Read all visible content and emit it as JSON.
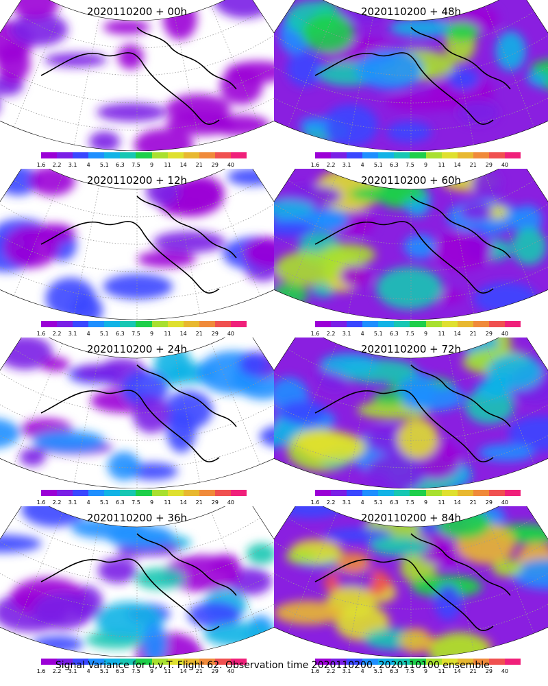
{
  "colorbar": {
    "labels": [
      "1.6",
      "2.2",
      "3.1",
      "4",
      "5.1",
      "6.3",
      "7.5",
      "9",
      "11",
      "14",
      "21",
      "29",
      "40"
    ],
    "colors": [
      "#9b00d6",
      "#7a1fe6",
      "#3a47ff",
      "#1f8fff",
      "#12b3e6",
      "#17c7b3",
      "#1ecf4a",
      "#a8e02f",
      "#dfe02f",
      "#e8b830",
      "#f08a3a",
      "#f05050",
      "#f0207a"
    ]
  },
  "panels": [
    {
      "title": "2020110200 + 00h",
      "intensity": 0.05
    },
    {
      "title": "2020110200 + 48h",
      "intensity": 0.55
    },
    {
      "title": "2020110200 + 12h",
      "intensity": 0.15
    },
    {
      "title": "2020110200 + 60h",
      "intensity": 0.65
    },
    {
      "title": "2020110200 + 24h",
      "intensity": 0.3
    },
    {
      "title": "2020110200 + 72h",
      "intensity": 0.75
    },
    {
      "title": "2020110200 + 36h",
      "intensity": 0.42
    },
    {
      "title": "2020110200 + 84h",
      "intensity": 0.85
    }
  ],
  "footer": "Signal Variance for u,v,T. Flight 62. Observation time 2020110200. 2020110100 ensemble."
}
